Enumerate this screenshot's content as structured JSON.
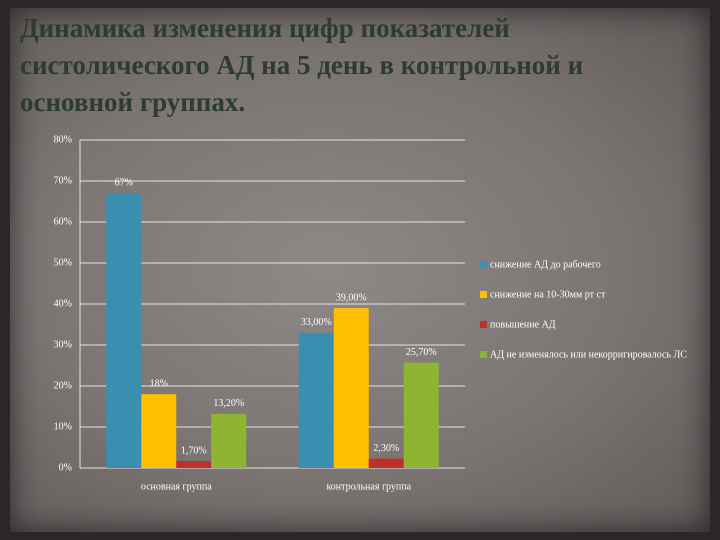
{
  "chart_data": {
    "type": "bar",
    "title": "Динамика изменения цифр показателей систолического АД на 5 день в контрольной и основной группах.",
    "categories": [
      "основная группа",
      "контрольная группа"
    ],
    "series": [
      {
        "name": "снижение АД до рабочего",
        "color": "#3a8fb0",
        "values": [
          67,
          33
        ],
        "value_labels": [
          "67%",
          "33,00%"
        ]
      },
      {
        "name": "снижение на 10-30мм рт ст",
        "color": "#ffc000",
        "values": [
          18,
          39
        ],
        "value_labels": [
          "18%",
          "39,00%"
        ]
      },
      {
        "name": "повышение АД",
        "color": "#c0302a",
        "values": [
          1.7,
          2.3
        ],
        "value_labels": [
          "1,70%",
          "2,30%"
        ]
      },
      {
        "name": "АД не изменялось или некорригировалось ЛС",
        "color": "#8db531",
        "values": [
          13.2,
          25.7
        ],
        "value_labels": [
          "13,20%",
          "25,70%"
        ]
      }
    ],
    "ylim": [
      0,
      80
    ],
    "yticks": [
      {
        "value": 0,
        "label": "0%"
      },
      {
        "value": 10,
        "label": "10%"
      },
      {
        "value": 20,
        "label": "20%"
      },
      {
        "value": 30,
        "label": "30%"
      },
      {
        "value": 40,
        "label": "40%"
      },
      {
        "value": 50,
        "label": "50%"
      },
      {
        "value": 60,
        "label": "60%"
      },
      {
        "value": 70,
        "label": "70%"
      },
      {
        "value": 80,
        "label": "80%"
      }
    ],
    "grid": true,
    "legend": "right"
  }
}
